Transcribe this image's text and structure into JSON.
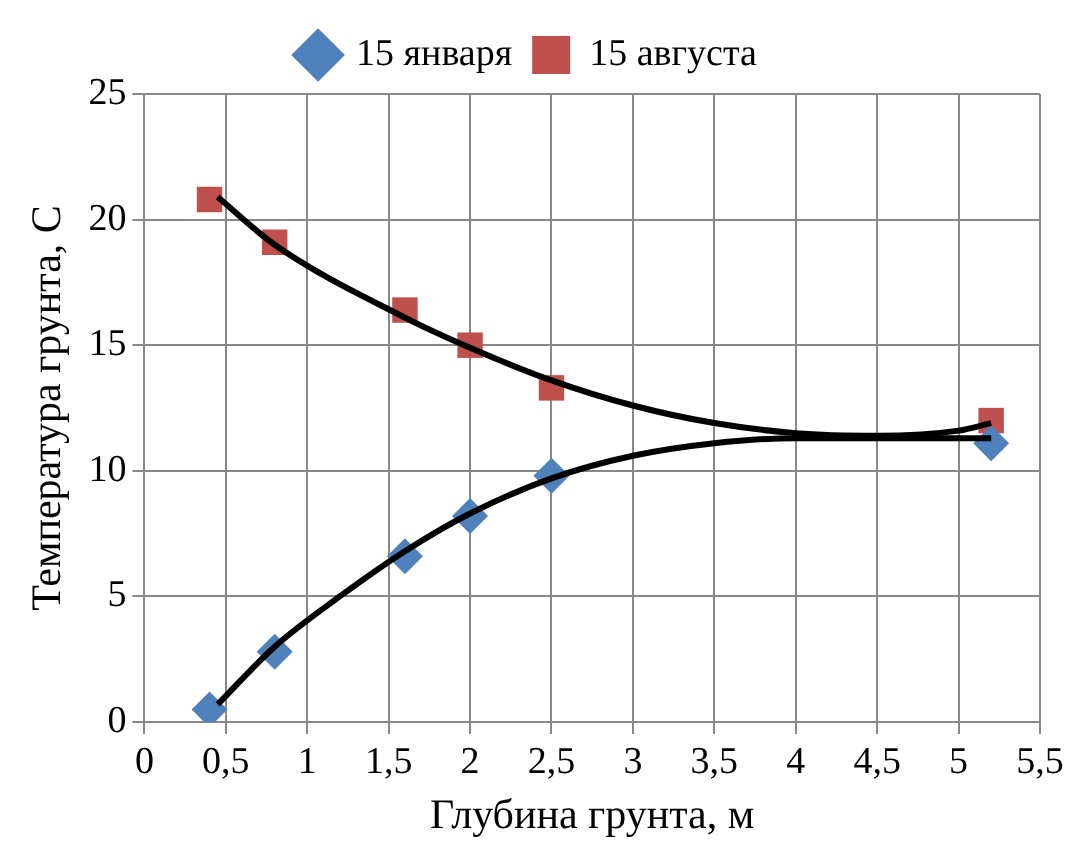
{
  "chart_data": {
    "type": "scatter",
    "xlabel": "Глубина грунта, м",
    "ylabel": "Температура грунта, С",
    "xlim": [
      0,
      5.5
    ],
    "xticks": [
      0,
      {
        "value": 0.5,
        "label": "0,5"
      },
      1,
      {
        "value": 1.5,
        "label": "1,5"
      },
      2,
      {
        "value": 2.5,
        "label": "2,5"
      },
      3,
      {
        "value": 3.5,
        "label": "3,5"
      },
      4,
      {
        "value": 4.5,
        "label": "4,5"
      },
      5,
      {
        "value": 5.5,
        "label": "5,5"
      }
    ],
    "ylim": [
      0,
      25
    ],
    "yticks": [
      0,
      5,
      10,
      15,
      20,
      25
    ],
    "grid": true,
    "legend": "top",
    "series": [
      {
        "name": "15 января",
        "color": "#4f81bd",
        "marker": "diamond",
        "x": [
          0.4,
          0.8,
          1.6,
          2.0,
          2.5,
          5.2
        ],
        "values": [
          0.5,
          2.8,
          6.6,
          8.2,
          9.8,
          11.1
        ]
      },
      {
        "name": "15 августа",
        "color": "#c0504d",
        "marker": "square",
        "x": [
          0.4,
          0.8,
          1.6,
          2.0,
          2.5,
          5.2
        ],
        "values": [
          20.8,
          19.1,
          16.4,
          15.0,
          13.3,
          12.0
        ]
      },
      {
        "type": "line",
        "color": "#000000",
        "marker": "none",
        "x": [
          0.45,
          0.8,
          1.2,
          1.6,
          2.0,
          2.5,
          3.0,
          3.5,
          4.0,
          4.5,
          5.2
        ],
        "values": [
          0.7,
          3.0,
          5.0,
          6.8,
          8.3,
          9.7,
          10.6,
          11.1,
          11.3,
          11.3,
          11.3
        ]
      },
      {
        "type": "line",
        "color": "#000000",
        "marker": "none",
        "x": [
          0.45,
          0.8,
          1.6,
          2.0,
          2.5,
          3.0,
          3.5,
          4.0,
          4.5,
          5.0,
          5.2
        ],
        "values": [
          20.9,
          19.0,
          16.1,
          14.9,
          13.6,
          12.6,
          11.9,
          11.5,
          11.4,
          11.6,
          11.9
        ]
      }
    ]
  }
}
